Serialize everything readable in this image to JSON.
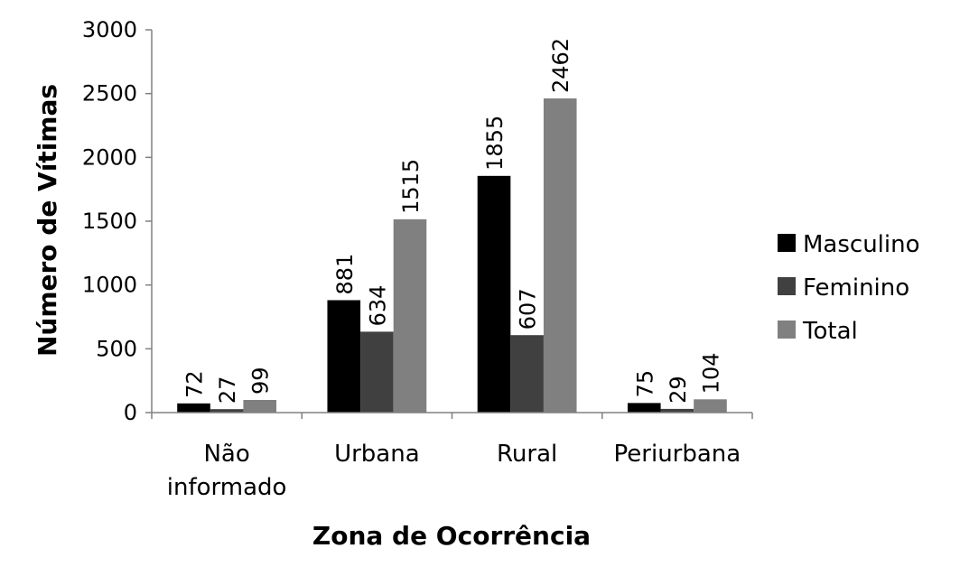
{
  "chart_data": {
    "type": "bar",
    "xlabel": "Zona de Ocorrência",
    "ylabel": "Número de Vítimas",
    "ylim": [
      0,
      3000
    ],
    "yticks": [
      "0",
      "500",
      "1000",
      "1500",
      "2000",
      "2500",
      "3000"
    ],
    "categories": [
      [
        "Não",
        "informado"
      ],
      [
        "Urbana"
      ],
      [
        "Rural"
      ],
      [
        "Periurbana"
      ]
    ],
    "series": [
      {
        "name": "Masculino",
        "color": "#000000",
        "values": [
          72,
          881,
          1855,
          75
        ]
      },
      {
        "name": "Feminino",
        "color": "#404040",
        "values": [
          27,
          634,
          607,
          29
        ]
      },
      {
        "name": "Total",
        "color": "#808080",
        "values": [
          99,
          1515,
          2462,
          104
        ]
      }
    ],
    "legend_position": "right",
    "grid": false,
    "data_labels": "vertical-above-bars"
  }
}
